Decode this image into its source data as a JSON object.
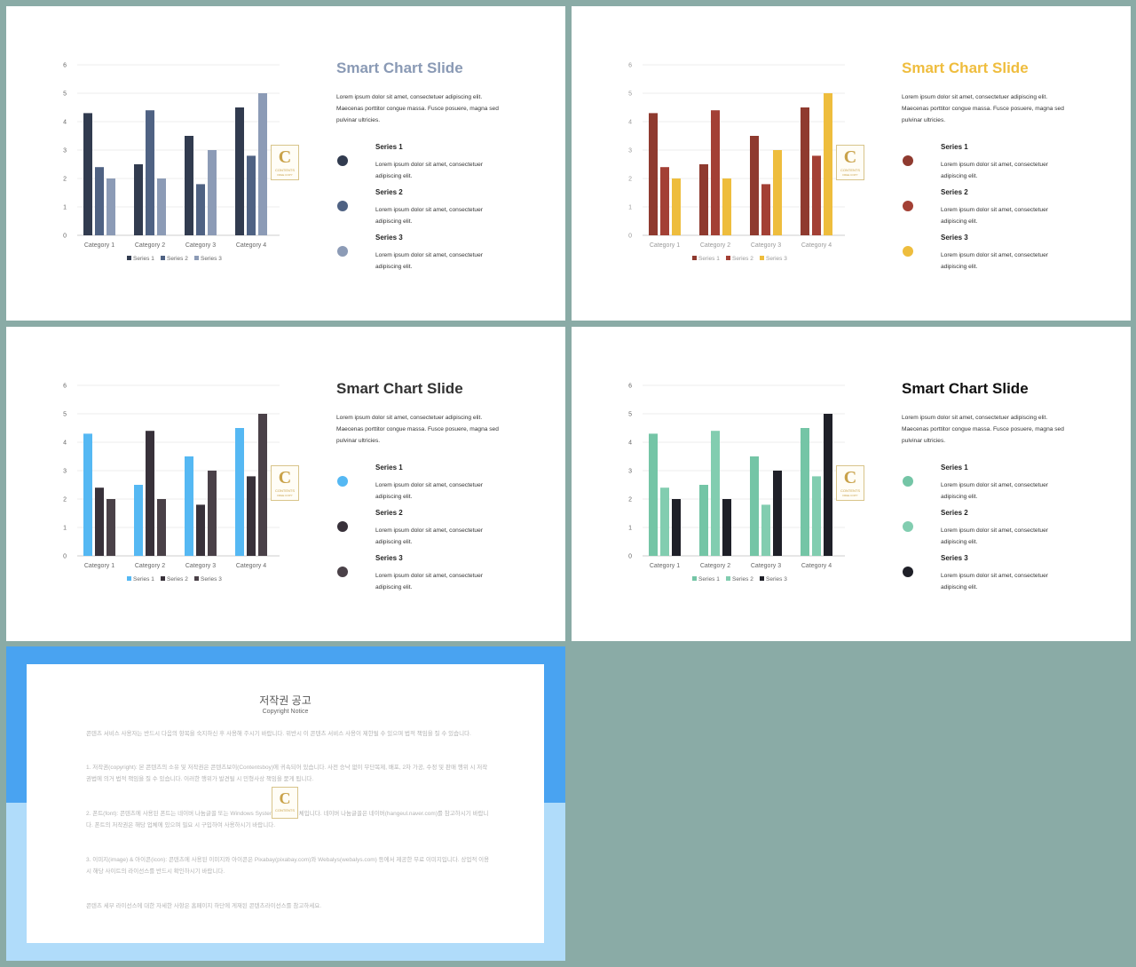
{
  "slides": [
    {
      "title": "Smart Chart Slide",
      "title_color": "#8a9ab5",
      "description": "Lorem ipsum dolor sit amet, consectetuer adipiscing elit. Maecenas porttitor congue massa. Fusce posuere, magna sed pulvinar ultricies.",
      "series_colors": [
        "#313b4f",
        "#4f6283",
        "#8c9bb6"
      ],
      "axis_label_color": "#666666",
      "series": [
        {
          "name": "Series 1",
          "text": "Lorem ipsum dolor sit amet, consectetuer adipiscing elit."
        },
        {
          "name": "Series 2",
          "text": "Lorem ipsum dolor sit amet, consectetuer adipiscing elit."
        },
        {
          "name": "Series 3",
          "text": "Lorem ipsum dolor sit amet, consectetuer adipiscing elit."
        }
      ]
    },
    {
      "title": "Smart Chart Slide",
      "title_color": "#efbd3e",
      "description": "Lorem ipsum dolor sit amet, consectetuer adipiscing elit. Maecenas porttitor congue massa. Fusce posuere, magna sed pulvinar ultricies.",
      "series_colors": [
        "#8f3a2f",
        "#a34035",
        "#eebd3d"
      ],
      "axis_label_color": "#999999",
      "series": [
        {
          "name": "Series 1",
          "text": "Lorem ipsum dolor sit amet, consectetuer adipiscing elit."
        },
        {
          "name": "Series 2",
          "text": "Lorem ipsum dolor sit amet, consectetuer adipiscing elit."
        },
        {
          "name": "Series 3",
          "text": "Lorem ipsum dolor sit amet, consectetuer adipiscing elit."
        }
      ]
    },
    {
      "title": "Smart Chart Slide",
      "title_color": "#333333",
      "description": "Lorem ipsum dolor sit amet, consectetuer adipiscing elit. Maecenas porttitor congue massa. Fusce posuere, magna sed pulvinar ultricies.",
      "series_colors": [
        "#55b8f3",
        "#38313a",
        "#4a4148"
      ],
      "axis_label_color": "#666666",
      "series": [
        {
          "name": "Series 1",
          "text": "Lorem ipsum dolor sit amet, consectetuer adipiscing elit."
        },
        {
          "name": "Series 2",
          "text": "Lorem ipsum dolor sit amet, consectetuer adipiscing elit."
        },
        {
          "name": "Series 3",
          "text": "Lorem ipsum dolor sit amet, consectetuer adipiscing elit."
        }
      ]
    },
    {
      "title": "Smart Chart Slide",
      "title_color": "#111111",
      "description": "Lorem ipsum dolor sit amet, consectetuer adipiscing elit. Maecenas porttitor congue massa. Fusce posuere, magna sed pulvinar ultricies.",
      "series_colors": [
        "#74c5a6",
        "#82cdb0",
        "#1f2028"
      ],
      "axis_label_color": "#666666",
      "series": [
        {
          "name": "Series 1",
          "text": "Lorem ipsum dolor sit amet, consectetuer adipiscing elit."
        },
        {
          "name": "Series 2",
          "text": "Lorem ipsum dolor sit amet, consectetuer adipiscing elit."
        },
        {
          "name": "Series 3",
          "text": "Lorem ipsum dolor sit amet, consectetuer adipiscing elit."
        }
      ]
    }
  ],
  "chart_data": [
    {
      "type": "bar",
      "categories": [
        "Category 1",
        "Category 2",
        "Category 3",
        "Category 4"
      ],
      "series": [
        {
          "name": "Series 1",
          "values": [
            4.3,
            2.5,
            3.5,
            4.5
          ]
        },
        {
          "name": "Series 2",
          "values": [
            2.4,
            4.4,
            1.8,
            2.8
          ]
        },
        {
          "name": "Series 3",
          "values": [
            2,
            2,
            3,
            5
          ]
        }
      ],
      "ylim": [
        0,
        6
      ],
      "yticks": [
        0,
        1,
        2,
        3,
        4,
        5,
        6
      ],
      "grid": true,
      "legend": "bottom"
    },
    {
      "type": "bar",
      "categories": [
        "Category 1",
        "Category 2",
        "Category 3",
        "Category 4"
      ],
      "series": [
        {
          "name": "Series 1",
          "values": [
            4.3,
            2.5,
            3.5,
            4.5
          ]
        },
        {
          "name": "Series 2",
          "values": [
            2.4,
            4.4,
            1.8,
            2.8
          ]
        },
        {
          "name": "Series 3",
          "values": [
            2,
            2,
            3,
            5
          ]
        }
      ],
      "ylim": [
        0,
        6
      ],
      "yticks": [
        0,
        1,
        2,
        3,
        4,
        5,
        6
      ],
      "grid": true,
      "legend": "bottom"
    },
    {
      "type": "bar",
      "categories": [
        "Category 1",
        "Category 2",
        "Category 3",
        "Category 4"
      ],
      "series": [
        {
          "name": "Series 1",
          "values": [
            4.3,
            2.5,
            3.5,
            4.5
          ]
        },
        {
          "name": "Series 2",
          "values": [
            2.4,
            4.4,
            1.8,
            2.8
          ]
        },
        {
          "name": "Series 3",
          "values": [
            2,
            2,
            3,
            5
          ]
        }
      ],
      "ylim": [
        0,
        6
      ],
      "yticks": [
        0,
        1,
        2,
        3,
        4,
        5,
        6
      ],
      "grid": true,
      "legend": "bottom"
    },
    {
      "type": "bar",
      "categories": [
        "Category 1",
        "Category 2",
        "Category 3",
        "Category 4"
      ],
      "series": [
        {
          "name": "Series 1",
          "values": [
            4.3,
            2.5,
            3.5,
            4.5
          ]
        },
        {
          "name": "Series 2",
          "values": [
            2.4,
            4.4,
            1.8,
            2.8
          ]
        },
        {
          "name": "Series 3",
          "values": [
            2,
            2,
            3,
            5
          ]
        }
      ],
      "ylim": [
        0,
        6
      ],
      "yticks": [
        0,
        1,
        2,
        3,
        4,
        5,
        6
      ],
      "grid": true,
      "legend": "bottom"
    }
  ],
  "logo": {
    "letter": "C",
    "word": "CONTENTS",
    "sub": "FREE COPY"
  },
  "copyright": {
    "title": "저작권 공고",
    "subtitle": "Copyright Notice",
    "paragraphs": [
      "콘텐츠 서비스 사용자는 반드시 다음의 항목을 숙지하신 후 사용해 주시기 바랍니다. 위반시 이 콘텐츠 서비스 사용이 제한될 수 있으며 법적 책임을 질 수 있습니다.",
      "1. 저작권(copyright): 본 콘텐츠의 소유 및 저작권은 콘텐츠보이(Contentsboy)에 귀속되어 있습니다. 사전 승낙 없이 무단복제, 배포, 2차 가공, 수정 및 판매 행위 시 저작권법에 의거 법적 책임을 질 수 있습니다. 이러한 행위가 발견될 시 민형사상 책임을 묻게 됩니다.",
      "2. 폰트(font): 콘텐츠에 사용된 폰트는 네이버 나눔글꼴 또는 Windows System의 기본 서체입니다. 네이버 나눔글꼴은 네이버(hangeul.naver.com)를 참고하시기 바랍니다. 폰트의 저작권은 해당 업체에 있으며 필요 시 구입하여 사용하시기 바랍니다.",
      "3. 이미지(image) & 아이콘(icon): 콘텐츠에 사용된 이미지와 아이콘은 Pixabay(pixabay.com)와 Webalys(webalys.com) 등에서 제공한 무료 이미지입니다. 상업적 이용 시 해당 사이트의 라이선스를 반드시 확인하시기 바랍니다.",
      "콘텐츠 세부 라이선스에 대한 자세한 사항은 홈페이지 하단에 게재된 콘텐츠라이선스를 참고하세요."
    ]
  }
}
